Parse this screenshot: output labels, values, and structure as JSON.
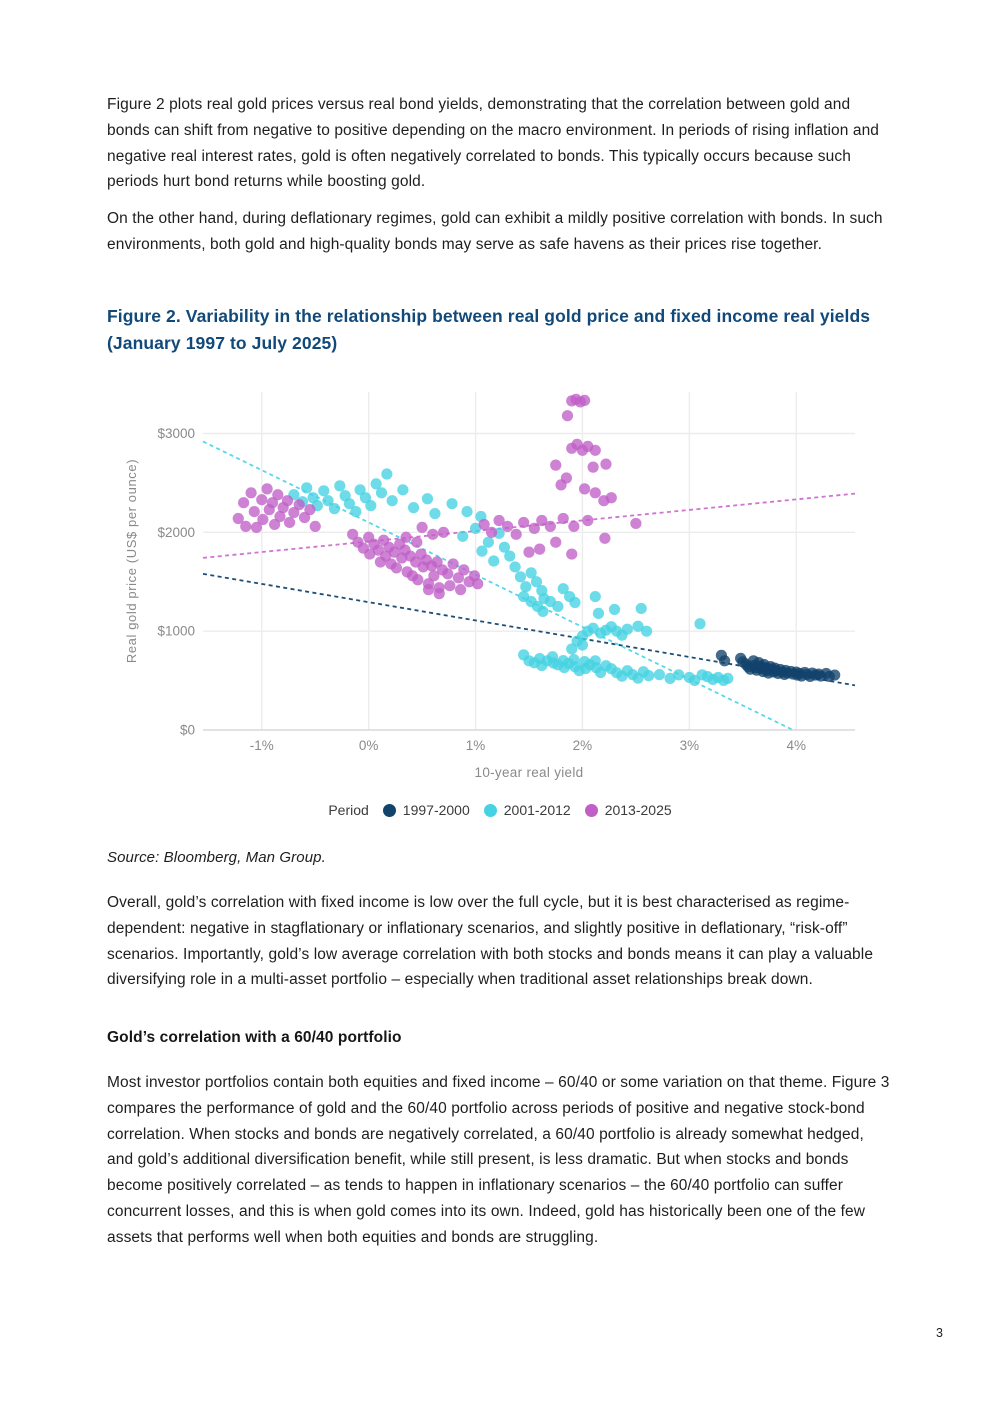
{
  "page": {
    "number": "3"
  },
  "paragraphs": {
    "p1": "Figure 2 plots real gold prices versus real bond yields, demonstrating that the correlation between gold and bonds can shift from negative to positive depending on the macro environment. In periods of rising inflation and negative real interest rates, gold is often negatively correlated to bonds. This typically occurs because such periods hurt bond returns while boosting gold.",
    "p2": "On the other hand, during deflationary regimes, gold can exhibit a mildly positive correlation with bonds. In such environments, both gold and high-quality bonds may serve as safe havens as their prices rise together.",
    "p3": "Overall, gold’s correlation with fixed income is low over the full cycle, but it is best characterised as regime-dependent: negative in stagflationary or inflationary scenarios, and slightly positive in deflationary, “risk-off” scenarios. Importantly, gold’s low average correlation with both stocks and bonds means it can play a valuable diversifying role in a multi-asset portfolio – especially when traditional asset relationships break down.",
    "p4": "Most investor portfolios contain both equities and fixed income – 60/40 or some variation on that theme. Figure 3 compares the performance of gold and the 60/40 portfolio across periods of positive and negative stock-bond correlation. When stocks and bonds are negatively correlated, a 60/40 portfolio is already somewhat hedged, and gold’s additional diversification benefit, while still present, is less dramatic. But when stocks and bonds become positively correlated – as tends to happen in inflationary scenarios – the 60/40 portfolio can suffer concurrent losses, and this is when gold comes into its own. Indeed, gold has historically been one of the few assets that performs well when both equities and bonds are struggling."
  },
  "figure": {
    "title": "Figure 2. Variability in the relationship between real gold price and fixed income real yields (January 1997 to July 2025)",
    "source": "Source: Bloomberg, Man Group.",
    "title_color": "#11497a"
  },
  "section": {
    "heading": "Gold’s correlation with a 60/40 portfolio"
  },
  "chart_data": {
    "type": "scatter",
    "title": "",
    "xlabel": "10-year real yield",
    "ylabel": "Real gold price (US$ per ounce)",
    "xlim": [
      -1.55,
      4.55
    ],
    "ylim": [
      0,
      3420
    ],
    "xticks": [
      -1,
      0,
      1,
      2,
      3,
      4
    ],
    "xtick_labels": [
      "-1%",
      "0%",
      "1%",
      "2%",
      "3%",
      "4%"
    ],
    "yticks": [
      0,
      1000,
      2000,
      3000
    ],
    "ytick_labels": [
      "$0",
      "$1000",
      "$2000",
      "$3000"
    ],
    "grid": true,
    "legend_title": "Period",
    "legend_position": "bottom",
    "colors": {
      "grid": "#ececec",
      "axis": "#d8d8d8",
      "tick_text": "#8a8a8a"
    },
    "series": [
      {
        "name": "1997-2000",
        "color": "#12436B",
        "trend_color": "#1d4e78",
        "trend": {
          "x1": -1.55,
          "y1": 1580,
          "x2": 4.55,
          "y2": 452
        },
        "points": [
          [
            3.3,
            755
          ],
          [
            3.33,
            700
          ],
          [
            3.48,
            725
          ],
          [
            3.5,
            690
          ],
          [
            3.53,
            665
          ],
          [
            3.55,
            640
          ],
          [
            3.57,
            615
          ],
          [
            3.6,
            700
          ],
          [
            3.6,
            652
          ],
          [
            3.62,
            630
          ],
          [
            3.63,
            605
          ],
          [
            3.65,
            682
          ],
          [
            3.66,
            645
          ],
          [
            3.68,
            620
          ],
          [
            3.69,
            592
          ],
          [
            3.7,
            662
          ],
          [
            3.71,
            632
          ],
          [
            3.73,
            602
          ],
          [
            3.74,
            576
          ],
          [
            3.76,
            642
          ],
          [
            3.77,
            616
          ],
          [
            3.79,
            588
          ],
          [
            3.8,
            626
          ],
          [
            3.81,
            600
          ],
          [
            3.83,
            572
          ],
          [
            3.85,
            612
          ],
          [
            3.87,
            586
          ],
          [
            3.89,
            562
          ],
          [
            3.9,
            602
          ],
          [
            3.92,
            576
          ],
          [
            3.95,
            592
          ],
          [
            3.97,
            566
          ],
          [
            4.0,
            586
          ],
          [
            4.01,
            556
          ],
          [
            4.03,
            572
          ],
          [
            4.05,
            546
          ],
          [
            4.08,
            582
          ],
          [
            4.1,
            562
          ],
          [
            4.13,
            542
          ],
          [
            4.15,
            576
          ],
          [
            4.18,
            556
          ],
          [
            4.21,
            566
          ],
          [
            4.23,
            546
          ],
          [
            4.28,
            572
          ],
          [
            4.31,
            542
          ],
          [
            4.36,
            556
          ]
        ]
      },
      {
        "name": "2001-2012",
        "color": "#45D2E2",
        "trend_color": "#56d8e8",
        "trend": {
          "x1": -1.55,
          "y1": 2920,
          "x2": 3.97,
          "y2": 0
        },
        "points": [
          [
            -0.7,
            2380
          ],
          [
            -0.62,
            2310
          ],
          [
            -0.58,
            2450
          ],
          [
            -0.52,
            2350
          ],
          [
            -0.48,
            2270
          ],
          [
            -0.42,
            2420
          ],
          [
            -0.38,
            2320
          ],
          [
            -0.32,
            2240
          ],
          [
            -0.27,
            2470
          ],
          [
            -0.22,
            2370
          ],
          [
            -0.18,
            2290
          ],
          [
            -0.12,
            2210
          ],
          [
            -0.08,
            2430
          ],
          [
            -0.03,
            2350
          ],
          [
            0.02,
            2270
          ],
          [
            0.07,
            2490
          ],
          [
            0.12,
            2400
          ],
          [
            0.17,
            2590
          ],
          [
            0.22,
            2320
          ],
          [
            0.32,
            2430
          ],
          [
            0.42,
            2250
          ],
          [
            0.55,
            2340
          ],
          [
            0.62,
            2190
          ],
          [
            0.78,
            2290
          ],
          [
            0.92,
            2210
          ],
          [
            1.05,
            2160
          ],
          [
            0.88,
            1960
          ],
          [
            1.0,
            2040
          ],
          [
            1.06,
            1810
          ],
          [
            1.12,
            1900
          ],
          [
            1.17,
            1710
          ],
          [
            1.22,
            1990
          ],
          [
            1.27,
            1850
          ],
          [
            1.32,
            1760
          ],
          [
            1.37,
            1650
          ],
          [
            1.42,
            1550
          ],
          [
            1.47,
            1450
          ],
          [
            1.52,
            1590
          ],
          [
            1.57,
            1500
          ],
          [
            1.62,
            1410
          ],
          [
            1.45,
            1350
          ],
          [
            1.52,
            1300
          ],
          [
            1.58,
            1250
          ],
          [
            1.64,
            1330
          ],
          [
            1.7,
            1300
          ],
          [
            1.77,
            1250
          ],
          [
            1.63,
            1200
          ],
          [
            1.82,
            1430
          ],
          [
            1.88,
            1350
          ],
          [
            1.93,
            1290
          ],
          [
            1.95,
            900
          ],
          [
            2.0,
            860
          ],
          [
            1.9,
            820
          ],
          [
            2.0,
            950
          ],
          [
            2.05,
            1000
          ],
          [
            2.1,
            1030
          ],
          [
            2.17,
            980
          ],
          [
            2.22,
            1010
          ],
          [
            2.27,
            1045
          ],
          [
            2.32,
            1000
          ],
          [
            2.37,
            960
          ],
          [
            2.42,
            1020
          ],
          [
            2.52,
            1050
          ],
          [
            2.6,
            1000
          ],
          [
            2.15,
            1180
          ],
          [
            2.3,
            1220
          ],
          [
            2.12,
            1350
          ],
          [
            2.55,
            1230
          ],
          [
            1.45,
            760
          ],
          [
            1.5,
            700
          ],
          [
            1.55,
            680
          ],
          [
            1.6,
            722
          ],
          [
            1.62,
            652
          ],
          [
            1.67,
            700
          ],
          [
            1.72,
            742
          ],
          [
            1.73,
            678
          ],
          [
            1.77,
            660
          ],
          [
            1.82,
            702
          ],
          [
            1.83,
            632
          ],
          [
            1.87,
            672
          ],
          [
            1.92,
            712
          ],
          [
            1.93,
            640
          ],
          [
            1.97,
            600
          ],
          [
            2.02,
            692
          ],
          [
            2.03,
            622
          ],
          [
            2.07,
            660
          ],
          [
            2.12,
            700
          ],
          [
            2.13,
            630
          ],
          [
            2.17,
            582
          ],
          [
            2.22,
            650
          ],
          [
            2.27,
            620
          ],
          [
            2.32,
            580
          ],
          [
            2.37,
            545
          ],
          [
            2.42,
            600
          ],
          [
            2.47,
            560
          ],
          [
            2.52,
            525
          ],
          [
            2.57,
            590
          ],
          [
            2.62,
            550
          ],
          [
            2.72,
            560
          ],
          [
            2.82,
            522
          ],
          [
            2.9,
            558
          ],
          [
            3.0,
            532
          ],
          [
            3.05,
            502
          ],
          [
            3.1,
            1075
          ],
          [
            3.12,
            558
          ],
          [
            3.17,
            540
          ],
          [
            3.22,
            512
          ],
          [
            3.27,
            532
          ],
          [
            3.32,
            502
          ],
          [
            3.36,
            522
          ]
        ]
      },
      {
        "name": "2013-2025",
        "color": "#C05FC6",
        "trend_color": "#cf74d2",
        "trend": {
          "x1": -1.55,
          "y1": 1742,
          "x2": 4.55,
          "y2": 2392
        },
        "points": [
          [
            -1.22,
            2140
          ],
          [
            -1.17,
            2300
          ],
          [
            -1.15,
            2060
          ],
          [
            -1.1,
            2400
          ],
          [
            -1.07,
            2210
          ],
          [
            -1.05,
            2050
          ],
          [
            -1.0,
            2330
          ],
          [
            -0.99,
            2130
          ],
          [
            -0.95,
            2440
          ],
          [
            -0.93,
            2230
          ],
          [
            -0.9,
            2300
          ],
          [
            -0.88,
            2080
          ],
          [
            -0.85,
            2380
          ],
          [
            -0.83,
            2160
          ],
          [
            -0.8,
            2250
          ],
          [
            -0.76,
            2320
          ],
          [
            -0.74,
            2100
          ],
          [
            -0.7,
            2200
          ],
          [
            -0.65,
            2280
          ],
          [
            -0.6,
            2150
          ],
          [
            -0.55,
            2230
          ],
          [
            -0.5,
            2060
          ],
          [
            -0.15,
            1980
          ],
          [
            -0.1,
            1900
          ],
          [
            -0.05,
            1840
          ],
          [
            0.0,
            1950
          ],
          [
            0.01,
            1780
          ],
          [
            0.05,
            1880
          ],
          [
            0.09,
            1820
          ],
          [
            0.11,
            1700
          ],
          [
            0.14,
            1920
          ],
          [
            0.16,
            1760
          ],
          [
            0.19,
            1850
          ],
          [
            0.21,
            1680
          ],
          [
            0.24,
            1800
          ],
          [
            0.26,
            1640
          ],
          [
            0.29,
            1880
          ],
          [
            0.31,
            1740
          ],
          [
            0.34,
            1820
          ],
          [
            0.36,
            1600
          ],
          [
            0.39,
            1760
          ],
          [
            0.41,
            1560
          ],
          [
            0.44,
            1700
          ],
          [
            0.46,
            1520
          ],
          [
            0.49,
            1780
          ],
          [
            0.51,
            1650
          ],
          [
            0.54,
            1720
          ],
          [
            0.56,
            1480
          ],
          [
            0.59,
            1660
          ],
          [
            0.61,
            1560
          ],
          [
            0.64,
            1700
          ],
          [
            0.66,
            1440
          ],
          [
            0.69,
            1620
          ],
          [
            0.74,
            1580
          ],
          [
            0.79,
            1680
          ],
          [
            0.84,
            1540
          ],
          [
            0.89,
            1620
          ],
          [
            0.94,
            1500
          ],
          [
            0.99,
            1560
          ],
          [
            0.5,
            2050
          ],
          [
            0.6,
            1980
          ],
          [
            0.7,
            2000
          ],
          [
            0.35,
            1950
          ],
          [
            0.45,
            1900
          ],
          [
            0.56,
            1420
          ],
          [
            0.66,
            1380
          ],
          [
            0.76,
            1460
          ],
          [
            0.86,
            1420
          ],
          [
            1.02,
            1480
          ],
          [
            1.08,
            2080
          ],
          [
            1.15,
            2000
          ],
          [
            1.22,
            2120
          ],
          [
            1.3,
            2060
          ],
          [
            1.38,
            1980
          ],
          [
            1.45,
            2100
          ],
          [
            1.5,
            1800
          ],
          [
            1.55,
            2040
          ],
          [
            1.6,
            1830
          ],
          [
            1.62,
            2120
          ],
          [
            1.7,
            2060
          ],
          [
            1.75,
            1900
          ],
          [
            1.82,
            2140
          ],
          [
            1.92,
            2060
          ],
          [
            2.05,
            2120
          ],
          [
            2.21,
            1940
          ],
          [
            2.27,
            2350
          ],
          [
            2.5,
            2090
          ],
          [
            1.9,
            1780
          ],
          [
            1.75,
            2680
          ],
          [
            1.8,
            2480
          ],
          [
            1.85,
            2550
          ],
          [
            1.86,
            3180
          ],
          [
            1.9,
            3330
          ],
          [
            1.94,
            3345
          ],
          [
            1.98,
            3320
          ],
          [
            2.02,
            3335
          ],
          [
            1.9,
            2850
          ],
          [
            1.95,
            2890
          ],
          [
            2.0,
            2830
          ],
          [
            2.05,
            2870
          ],
          [
            2.12,
            2830
          ],
          [
            2.22,
            2690
          ],
          [
            2.02,
            2440
          ],
          [
            2.1,
            2660
          ],
          [
            2.12,
            2400
          ],
          [
            2.2,
            2320
          ]
        ]
      }
    ]
  }
}
